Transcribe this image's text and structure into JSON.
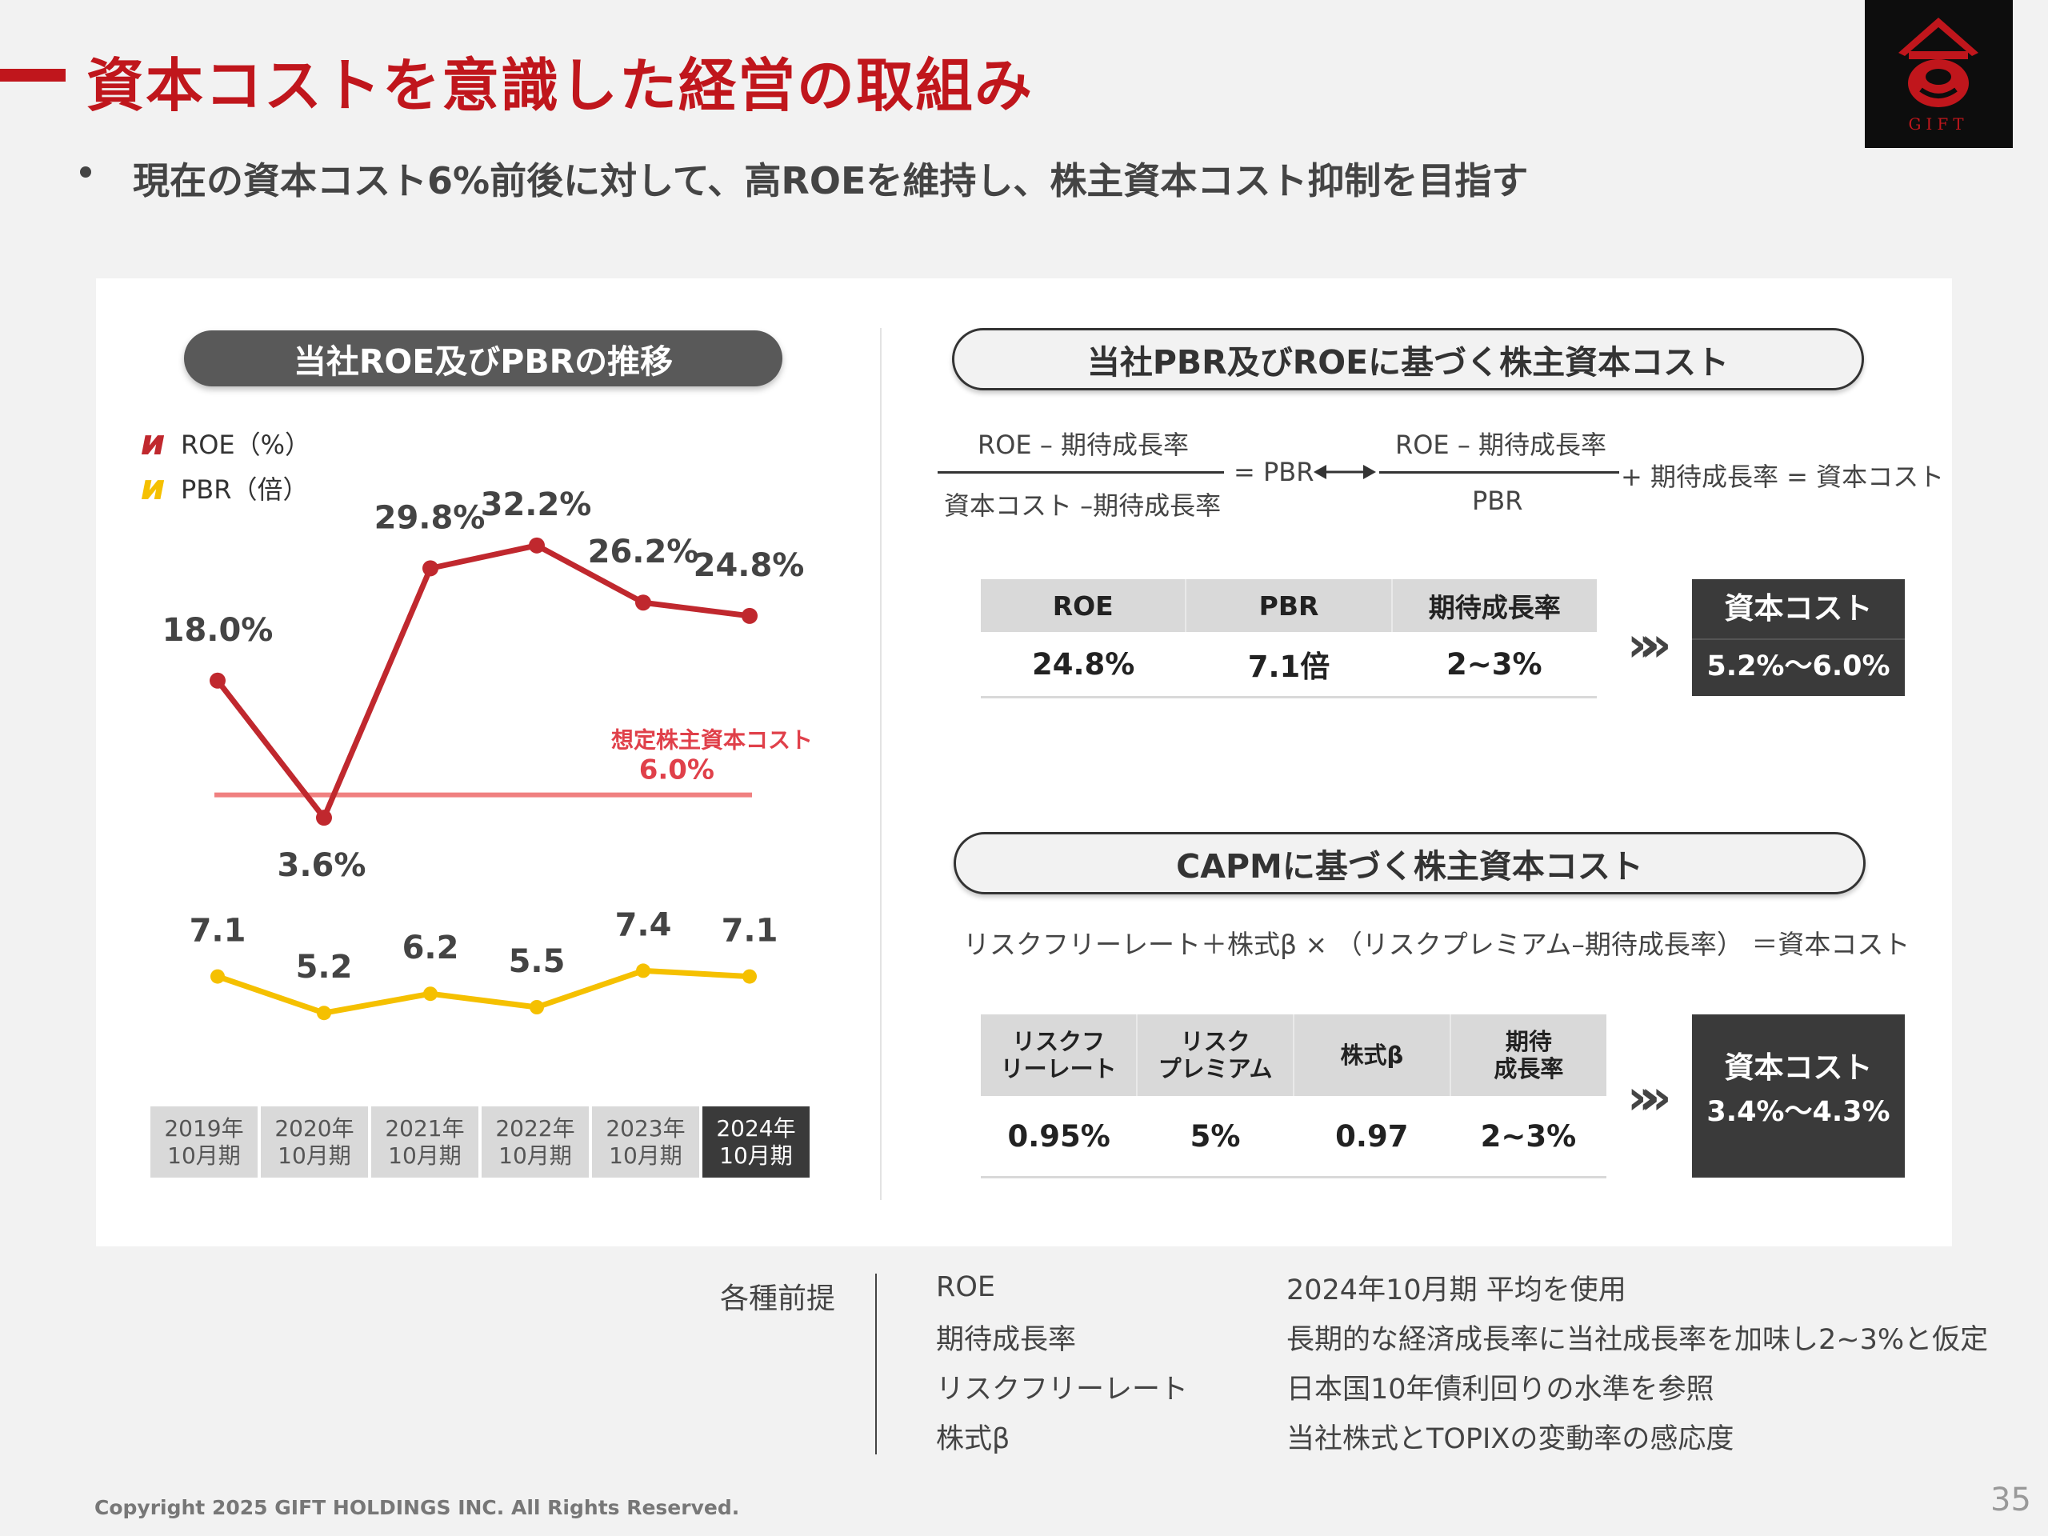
{
  "header": {
    "title": "資本コストを意識した経営の取組み",
    "subtitle": "現在の資本コスト6%前後に対して、高ROEを維持し、株主資本コスト抑制を目指す"
  },
  "logo": {
    "text": "GIFT"
  },
  "left_section": {
    "title": "当社ROE及びPBRの推移",
    "legend": [
      {
        "label": "ROE（%）",
        "color": "#c0282e"
      },
      {
        "label": "PBR（倍）",
        "color": "#f5c000"
      }
    ],
    "cost_label": "想定株主資本コスト",
    "cost_value": "6.0%",
    "years": [
      "2019年\n10月期",
      "2020年\n10月期",
      "2021年\n10月期",
      "2022年\n10月期",
      "2023年\n10月期",
      "2024年\n10月期"
    ]
  },
  "chart_data": {
    "type": "line",
    "categories": [
      "2019年10月期",
      "2020年10月期",
      "2021年10月期",
      "2022年10月期",
      "2023年10月期",
      "2024年10月期"
    ],
    "series": [
      {
        "name": "ROE（%）",
        "values": [
          18.0,
          3.6,
          29.8,
          32.2,
          26.2,
          24.8
        ],
        "labels": [
          "18.0%",
          "3.6%",
          "29.8%",
          "32.2%",
          "26.2%",
          "24.8%"
        ],
        "color": "#c0282e"
      },
      {
        "name": "PBR（倍）",
        "values": [
          7.1,
          5.2,
          6.2,
          5.5,
          7.4,
          7.1
        ],
        "labels": [
          "7.1",
          "5.2",
          "6.2",
          "5.5",
          "7.4",
          "7.1"
        ],
        "color": "#f5c000"
      }
    ],
    "reference_line": {
      "name": "想定株主資本コスト",
      "value": 6.0,
      "label": "6.0%",
      "color": "#f08080"
    },
    "legend_position": "top-left",
    "grid": false
  },
  "right_top": {
    "title": "当社PBR及びROEに基づく株主資本コスト",
    "formula": {
      "f1_num": "ROE – 期待成長率",
      "f1_den": "資本コスト –期待成長率",
      "eq_pbr": "= PBR",
      "f2_num": "ROE – 期待成長率",
      "f2_den": "PBR",
      "tail": "+ 期待成長率 = 資本コスト"
    },
    "table": {
      "headers": [
        "ROE",
        "PBR",
        "期待成長率"
      ],
      "values": [
        "24.8%",
        "7.1倍",
        "2~3%"
      ]
    },
    "result_label": "資本コスト",
    "result_value": "5.2%～6.0%"
  },
  "right_bottom": {
    "title": "CAPMに基づく株主資本コスト",
    "formula": "リスクフリーレート＋株式β × （リスクプレミアム–期待成長率） ＝資本コスト",
    "table": {
      "headers": [
        "リスクフ\nリーレート",
        "リスク\nプレミアム",
        "株式β",
        "期待\n成長率"
      ],
      "values": [
        "0.95%",
        "5%",
        "0.97",
        "2~3%"
      ]
    },
    "result_label": "資本コスト",
    "result_value": "3.4%～4.3%"
  },
  "assumptions": {
    "title": "各種前提",
    "rows": [
      {
        "key": "ROE",
        "value": "2024年10月期 平均を使用"
      },
      {
        "key": "期待成長率",
        "value": "長期的な経済成長率に当社成長率を加味し2~3%と仮定"
      },
      {
        "key": "リスクフリーレート",
        "value": "日本国10年債利回りの水準を参照"
      },
      {
        "key": "株式β",
        "value": "当社株式とTOPIXの変動率の感応度"
      }
    ]
  },
  "footer": {
    "copyright": "Copyright 2025 GIFT HOLDINGS INC. All Rights Reserved.",
    "page": "35"
  }
}
